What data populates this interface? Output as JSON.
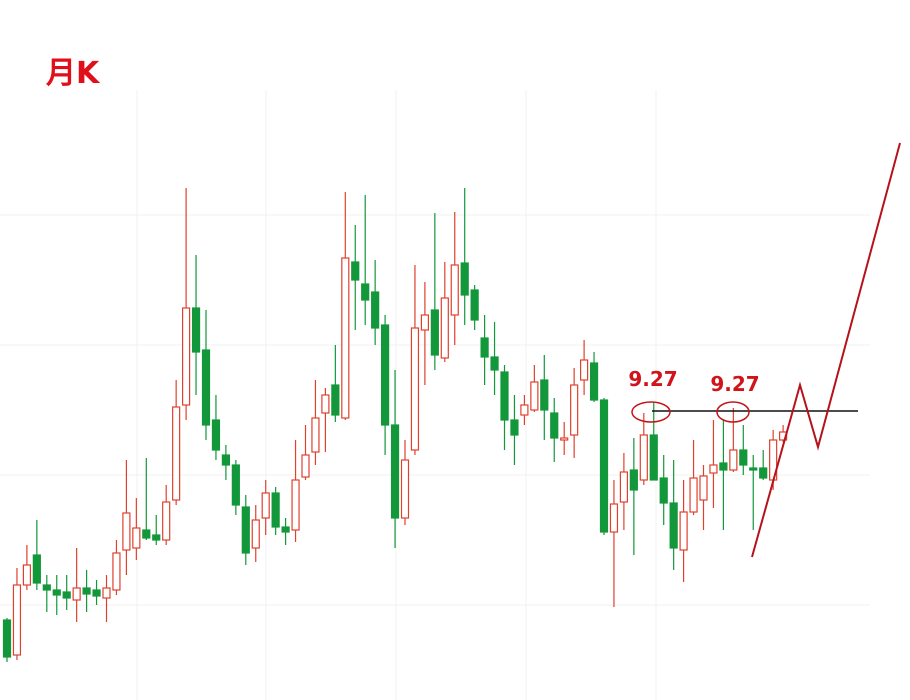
{
  "chart_data": {
    "type": "candlestick",
    "title": "月K",
    "colors": {
      "up": "#e0402e",
      "down": "#12983a"
    },
    "ylim": [
      6.5,
      12.5
    ],
    "ohlc": [
      [
        7.18,
        7.2,
        6.76,
        6.81
      ],
      [
        6.83,
        7.7,
        6.78,
        7.53
      ],
      [
        7.53,
        7.93,
        7.48,
        7.73
      ],
      [
        7.83,
        8.18,
        7.48,
        7.55
      ],
      [
        7.53,
        7.63,
        7.26,
        7.48
      ],
      [
        7.48,
        7.63,
        7.23,
        7.43
      ],
      [
        7.46,
        7.63,
        7.28,
        7.4
      ],
      [
        7.38,
        7.9,
        7.16,
        7.5
      ],
      [
        7.5,
        7.68,
        7.26,
        7.44
      ],
      [
        7.48,
        7.58,
        7.33,
        7.42
      ],
      [
        7.4,
        7.63,
        7.16,
        7.5
      ],
      [
        7.48,
        7.98,
        7.43,
        7.85
      ],
      [
        7.88,
        8.78,
        7.63,
        8.25
      ],
      [
        7.9,
        8.4,
        7.78,
        8.1
      ],
      [
        8.08,
        8.8,
        7.98,
        8.0
      ],
      [
        8.03,
        8.23,
        7.93,
        7.98
      ],
      [
        7.98,
        8.53,
        7.93,
        8.36
      ],
      [
        8.38,
        9.58,
        8.33,
        9.31
      ],
      [
        9.33,
        11.5,
        9.18,
        10.3
      ],
      [
        10.3,
        10.83,
        9.43,
        9.86
      ],
      [
        9.88,
        10.28,
        8.98,
        9.13
      ],
      [
        9.18,
        9.43,
        8.78,
        8.88
      ],
      [
        8.83,
        8.93,
        8.58,
        8.73
      ],
      [
        8.73,
        8.78,
        8.23,
        8.33
      ],
      [
        8.31,
        8.43,
        7.73,
        7.85
      ],
      [
        7.9,
        8.33,
        7.76,
        8.18
      ],
      [
        8.2,
        8.58,
        8.03,
        8.45
      ],
      [
        8.45,
        8.51,
        8.03,
        8.11
      ],
      [
        8.11,
        8.2,
        7.93,
        8.06
      ],
      [
        8.08,
        8.98,
        7.96,
        8.58
      ],
      [
        8.61,
        9.13,
        8.58,
        8.83
      ],
      [
        8.86,
        9.58,
        8.73,
        9.2
      ],
      [
        9.25,
        9.5,
        8.86,
        9.43
      ],
      [
        9.53,
        9.93,
        9.16,
        9.23
      ],
      [
        9.2,
        11.46,
        9.18,
        10.8
      ],
      [
        10.76,
        11.13,
        10.08,
        10.58
      ],
      [
        10.54,
        11.43,
        10.13,
        10.38
      ],
      [
        10.46,
        10.78,
        9.93,
        10.1
      ],
      [
        10.13,
        10.23,
        8.83,
        9.13
      ],
      [
        9.13,
        9.68,
        7.9,
        8.2
      ],
      [
        8.2,
        8.98,
        8.13,
        8.78
      ],
      [
        8.88,
        10.73,
        8.83,
        10.1
      ],
      [
        10.08,
        10.56,
        9.53,
        10.23
      ],
      [
        10.28,
        11.25,
        9.68,
        9.83
      ],
      [
        9.8,
        10.76,
        9.76,
        10.4
      ],
      [
        10.23,
        11.26,
        9.93,
        10.73
      ],
      [
        10.75,
        11.5,
        10.13,
        10.43
      ],
      [
        10.48,
        10.53,
        10.08,
        10.18
      ],
      [
        10.0,
        10.23,
        9.53,
        9.81
      ],
      [
        9.81,
        10.16,
        9.43,
        9.68
      ],
      [
        9.66,
        9.73,
        8.88,
        9.18
      ],
      [
        9.18,
        9.43,
        8.73,
        9.03
      ],
      [
        9.23,
        9.43,
        9.13,
        9.33
      ],
      [
        9.28,
        9.73,
        9.26,
        9.56
      ],
      [
        9.58,
        9.83,
        8.98,
        9.28
      ],
      [
        9.25,
        9.4,
        8.76,
        9.0
      ],
      [
        8.98,
        9.16,
        8.83,
        9.0
      ],
      [
        9.03,
        9.7,
        8.8,
        9.53
      ],
      [
        9.58,
        9.98,
        9.43,
        9.78
      ],
      [
        9.75,
        9.86,
        9.36,
        9.38
      ],
      [
        9.38,
        9.4,
        8.03,
        8.06
      ],
      [
        8.06,
        8.58,
        7.31,
        8.34
      ],
      [
        8.36,
        8.85,
        8.08,
        8.66
      ],
      [
        8.68,
        9.0,
        7.83,
        8.48
      ],
      [
        8.58,
        9.25,
        8.53,
        9.03
      ],
      [
        9.03,
        9.36,
        8.58,
        8.58
      ],
      [
        8.6,
        8.83,
        8.13,
        8.35
      ],
      [
        8.35,
        8.78,
        7.68,
        7.9
      ],
      [
        7.88,
        8.58,
        7.56,
        8.26
      ],
      [
        8.26,
        8.98,
        8.23,
        8.6
      ],
      [
        8.38,
        8.73,
        8.08,
        8.62
      ],
      [
        8.65,
        9.18,
        8.3,
        8.73
      ],
      [
        8.75,
        9.18,
        8.08,
        8.68
      ],
      [
        8.68,
        9.3,
        8.66,
        8.88
      ],
      [
        8.88,
        9.13,
        8.63,
        8.73
      ],
      [
        8.7,
        8.83,
        8.08,
        8.68
      ],
      [
        8.7,
        8.88,
        8.58,
        8.6
      ],
      [
        8.58,
        9.08,
        8.48,
        8.98
      ],
      [
        8.98,
        9.13,
        8.96,
        9.06
      ]
    ],
    "annotations": [
      "9.27",
      "9.27"
    ]
  }
}
